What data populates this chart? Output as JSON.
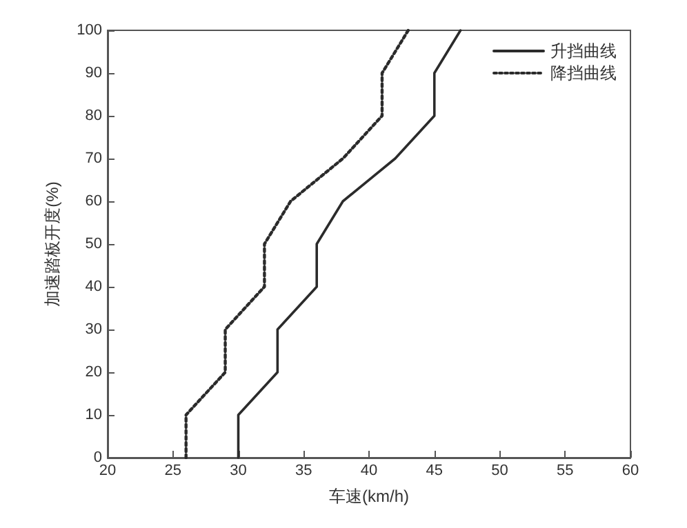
{
  "chart_data": {
    "type": "line",
    "xlabel": "车速(km/h)",
    "ylabel": "加速踏板开度(%)",
    "xlim": [
      20,
      60
    ],
    "xticks": [
      20,
      25,
      30,
      35,
      40,
      45,
      50,
      55,
      60
    ],
    "ylim": [
      0,
      100
    ],
    "yticks": [
      0,
      10,
      20,
      30,
      40,
      50,
      60,
      70,
      80,
      90,
      100
    ],
    "grid": false,
    "legend": "top right",
    "marker": "none",
    "series": [
      {
        "name": "升挡曲线",
        "color": "#2b2b2b",
        "line_style": "solid",
        "x": [
          30,
          30,
          33,
          33,
          36,
          36,
          38,
          42,
          45,
          45,
          47
        ],
        "values": [
          0,
          10,
          20,
          30,
          40,
          50,
          60,
          70,
          80,
          90,
          100
        ]
      },
      {
        "name": "降挡曲线",
        "color": "#2b2b2b",
        "line_style": "dotted",
        "x": [
          26,
          26,
          29,
          29,
          32,
          32,
          34,
          38,
          41,
          41,
          43
        ],
        "values": [
          0,
          10,
          20,
          30,
          40,
          50,
          60,
          70,
          80,
          90,
          100
        ]
      }
    ]
  }
}
